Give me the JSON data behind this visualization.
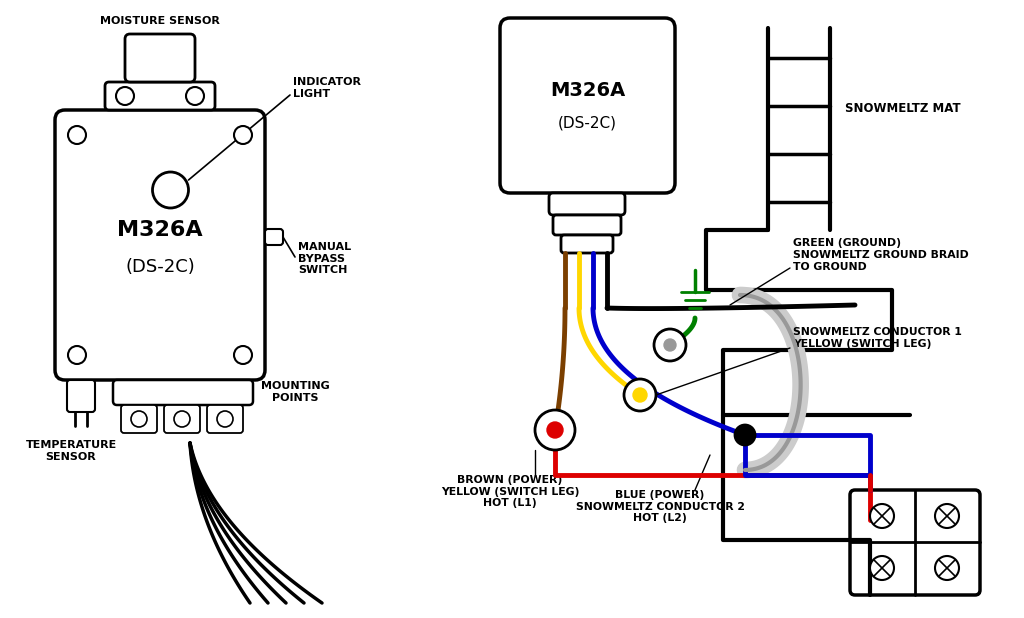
{
  "bg_color": "#ffffff",
  "line_color": "#000000",
  "labels": {
    "moisture_sensor": "MOISTURE SENSOR",
    "indicator_light": "INDICATOR\nLIGHT",
    "manual_bypass": "MANUAL\nBYPASS\nSWITCH",
    "mounting_points": "MOUNTING\nPOINTS",
    "temperature_sensor": "TEMPERATURE\nSENSOR",
    "model_left_1": "M326A",
    "model_left_2": "(DS-2C)",
    "model_right_1": "M326A",
    "model_right_2": "(DS-2C)",
    "snowmeltz_mat": "SNOWMELTZ MAT",
    "green_ground": "GREEN (GROUND)\nSNOWMELTZ GROUND BRAID\nTO GROUND",
    "conductor1": "SNOWMELTZ CONDUCTOR 1\nYELLOW (SWITCH LEG)",
    "brown_power": "BROWN (POWER)\nYELLOW (SWITCH LEG)\nHOT (L1)",
    "blue_power": "BLUE (POWER)\nSNOWMELTZ CONDUCTOR 2\nHOT (L2)"
  },
  "wire_colors": {
    "brown": "#7B3F00",
    "yellow": "#FFD700",
    "blue": "#0000CC",
    "black": "#000000",
    "red": "#DD0000",
    "green": "#008000",
    "gray": "#999999",
    "white_bg": "#D8D8D8"
  }
}
